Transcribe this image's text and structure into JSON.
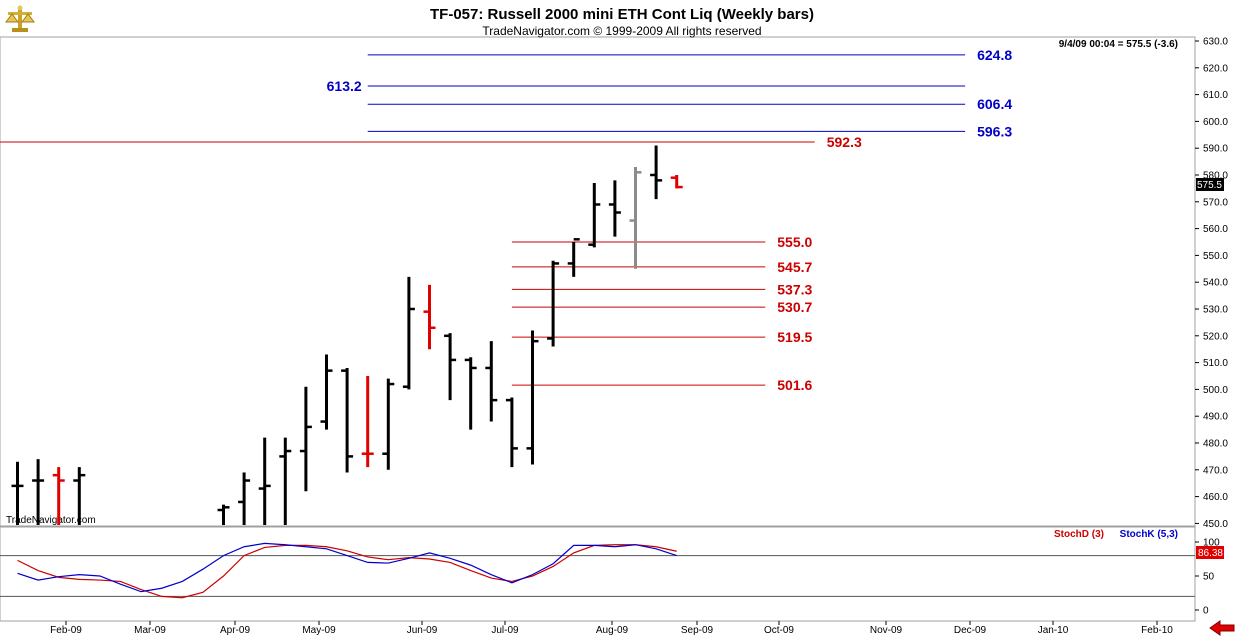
{
  "header": {
    "title": "TF-057:  Russell 2000 mini ETH Cont Liq  (Weekly bars)",
    "subtitle": "TradeNavigator.com © 1999-2009 All rights reserved"
  },
  "quote_line": "9/4/09 00:04 = 575.5 (-3.6)",
  "watermark": "TradeNavigator.com",
  "last_price_tag": "575.5",
  "colors": {
    "up_bar": "#000000",
    "down_bar": "#e00000",
    "neutral_bar": "#8c8c8c",
    "blue_level": "#0000c8",
    "red_level": "#cc0000",
    "stochD": "#cc0000",
    "stochK": "#0000cc",
    "osc_tag": "#e00000"
  },
  "icons": {
    "logo": "gold-scale-logo-icon",
    "nav": "red-left-arrow-icon"
  },
  "chart_data": [
    {
      "type": "ohlc",
      "title": "TF-057:  Russell 2000 mini ETH Cont Liq  (Weekly bars)",
      "ylim": [
        443,
        632
      ],
      "y_ticks": [
        "630.0",
        "620.0",
        "610.0",
        "600.0",
        "590.0",
        "580.0",
        "570.0",
        "560.0",
        "550.0",
        "540.0",
        "530.0",
        "520.0",
        "510.0",
        "500.0",
        "490.0",
        "480.0",
        "470.0",
        "460.0",
        "450.0"
      ],
      "x_labels": [
        "Feb-09",
        "Mar-09",
        "Apr-09",
        "May-09",
        "Jun-09",
        "Jul-09",
        "Aug-09",
        "Sep-09",
        "Oct-09",
        "Nov-09",
        "Dec-09",
        "Jan-10",
        "Feb-10"
      ],
      "bars": [
        {
          "w": 0,
          "o": 464,
          "h": 473,
          "l": 443,
          "c": 464,
          "color": "up"
        },
        {
          "w": 1,
          "o": 466,
          "h": 474,
          "l": 443,
          "c": 466,
          "color": "up"
        },
        {
          "w": 2,
          "o": 468,
          "h": 471,
          "l": 443,
          "c": 466,
          "color": "down"
        },
        {
          "w": 3,
          "o": 466,
          "h": 471,
          "l": 443,
          "c": 468,
          "color": "up"
        },
        {
          "w": 10,
          "o": 455,
          "h": 457,
          "l": 443,
          "c": 456,
          "color": "up"
        },
        {
          "w": 11,
          "o": 458,
          "h": 469,
          "l": 443,
          "c": 466,
          "color": "up"
        },
        {
          "w": 12,
          "o": 463,
          "h": 482,
          "l": 443,
          "c": 464,
          "color": "up"
        },
        {
          "w": 13,
          "o": 475,
          "h": 482,
          "l": 447,
          "c": 477,
          "color": "up"
        },
        {
          "w": 14,
          "o": 477,
          "h": 501,
          "l": 462,
          "c": 486,
          "color": "up"
        },
        {
          "w": 15,
          "o": 488,
          "h": 513,
          "l": 485,
          "c": 507,
          "color": "up"
        },
        {
          "w": 16,
          "o": 507,
          "h": 508,
          "l": 469,
          "c": 475,
          "color": "up"
        },
        {
          "w": 17,
          "o": 476,
          "h": 505,
          "l": 471,
          "c": 476,
          "color": "down"
        },
        {
          "w": 18,
          "o": 476,
          "h": 504,
          "l": 470,
          "c": 502,
          "color": "up"
        },
        {
          "w": 19,
          "o": 501,
          "h": 542,
          "l": 500,
          "c": 530,
          "color": "up"
        },
        {
          "w": 20,
          "o": 529,
          "h": 539,
          "l": 515,
          "c": 523,
          "color": "down"
        },
        {
          "w": 21,
          "o": 520,
          "h": 521,
          "l": 496,
          "c": 511,
          "color": "up"
        },
        {
          "w": 22,
          "o": 511,
          "h": 512,
          "l": 485,
          "c": 508,
          "color": "up"
        },
        {
          "w": 23,
          "o": 508,
          "h": 518,
          "l": 488,
          "c": 496,
          "color": "up"
        },
        {
          "w": 24,
          "o": 496,
          "h": 497,
          "l": 471,
          "c": 478,
          "color": "up"
        },
        {
          "w": 25,
          "o": 478,
          "h": 522,
          "l": 472,
          "c": 518,
          "color": "up"
        },
        {
          "w": 26,
          "o": 519,
          "h": 548,
          "l": 516,
          "c": 547,
          "color": "up"
        },
        {
          "w": 27,
          "o": 547,
          "h": 555,
          "l": 542,
          "c": 556,
          "color": "up"
        },
        {
          "w": 28,
          "o": 554,
          "h": 577,
          "l": 553,
          "c": 569,
          "color": "up"
        },
        {
          "w": 29,
          "o": 569,
          "h": 578,
          "l": 557,
          "c": 566,
          "color": "up"
        },
        {
          "w": 30,
          "o": 563,
          "h": 583,
          "l": 545,
          "c": 581,
          "color": "neutral"
        },
        {
          "w": 31,
          "o": 580,
          "h": 591,
          "l": 571,
          "c": 578,
          "color": "up"
        },
        {
          "w": 32,
          "o": 579,
          "h": 580,
          "l": 575,
          "c": 575.5,
          "color": "down"
        }
      ],
      "levels": [
        {
          "value": 624.8,
          "label": "624.8",
          "color": "blue",
          "label_side": "right",
          "x_start_w": 17,
          "x_end_w": 46
        },
        {
          "value": 613.2,
          "label": "613.2",
          "color": "blue",
          "label_side": "left",
          "x_start_w": 17,
          "x_end_w": 46
        },
        {
          "value": 606.4,
          "label": "606.4",
          "color": "blue",
          "label_side": "right",
          "x_start_w": 17,
          "x_end_w": 46
        },
        {
          "value": 596.3,
          "label": "596.3",
          "color": "blue",
          "label_side": "right",
          "x_start_w": 17,
          "x_end_w": 46
        },
        {
          "value": 592.3,
          "label": "592.3",
          "color": "red",
          "label_side": "right",
          "x_start_w": -1,
          "x_end_w": 38.7
        },
        {
          "value": 555.0,
          "label": "555.0",
          "color": "red",
          "label_side": "right",
          "x_start_w": 24,
          "x_end_w": 36.3
        },
        {
          "value": 545.7,
          "label": "545.7",
          "color": "red",
          "label_side": "right",
          "x_start_w": 24,
          "x_end_w": 36.3
        },
        {
          "value": 537.3,
          "label": "537.3",
          "color": "red",
          "label_side": "right",
          "x_start_w": 24,
          "x_end_w": 36.3
        },
        {
          "value": 530.7,
          "label": "530.7",
          "color": "red",
          "label_side": "right",
          "x_start_w": 24,
          "x_end_w": 36.3
        },
        {
          "value": 519.5,
          "label": "519.5",
          "color": "red",
          "label_side": "right",
          "x_start_w": 24,
          "x_end_w": 36.3
        },
        {
          "value": 501.6,
          "label": "501.6",
          "color": "red",
          "label_side": "right",
          "x_start_w": 24,
          "x_end_w": 36.3
        }
      ]
    },
    {
      "type": "line",
      "title": "Stochastic",
      "ylim": [
        -10,
        120
      ],
      "y_ticks": [
        "100",
        "50",
        "0"
      ],
      "reference_lines": [
        80,
        20
      ],
      "current_value_tag": "86.38",
      "series": [
        {
          "name": "StochD (3)",
          "color": "red",
          "points": [
            [
              0,
              73
            ],
            [
              1,
              58
            ],
            [
              2,
              48
            ],
            [
              3,
              45
            ],
            [
              4,
              44
            ],
            [
              5,
              42
            ],
            [
              6,
              30
            ],
            [
              7,
              20
            ],
            [
              8,
              18
            ],
            [
              9,
              26
            ],
            [
              10,
              50
            ],
            [
              11,
              80
            ],
            [
              12,
              92
            ],
            [
              13,
              95
            ],
            [
              14,
              95
            ],
            [
              15,
              93
            ],
            [
              16,
              87
            ],
            [
              17,
              78
            ],
            [
              18,
              74
            ],
            [
              19,
              77
            ],
            [
              20,
              75
            ],
            [
              21,
              70
            ],
            [
              22,
              58
            ],
            [
              23,
              47
            ],
            [
              24,
              42
            ],
            [
              25,
              50
            ],
            [
              26,
              64
            ],
            [
              27,
              84
            ],
            [
              28,
              95
            ],
            [
              29,
              96
            ],
            [
              30,
              96
            ],
            [
              31,
              93
            ],
            [
              32,
              86.38
            ]
          ]
        },
        {
          "name": "StochK (5,3)",
          "color": "blue",
          "points": [
            [
              0,
              54
            ],
            [
              1,
              44
            ],
            [
              2,
              49
            ],
            [
              3,
              52
            ],
            [
              4,
              50
            ],
            [
              5,
              38
            ],
            [
              6,
              27
            ],
            [
              7,
              32
            ],
            [
              8,
              42
            ],
            [
              9,
              60
            ],
            [
              10,
              80
            ],
            [
              11,
              93
            ],
            [
              12,
              98
            ],
            [
              13,
              96
            ],
            [
              14,
              93
            ],
            [
              15,
              90
            ],
            [
              16,
              80
            ],
            [
              17,
              70
            ],
            [
              18,
              69
            ],
            [
              19,
              76
            ],
            [
              20,
              84
            ],
            [
              21,
              76
            ],
            [
              22,
              66
            ],
            [
              23,
              52
            ],
            [
              24,
              40
            ],
            [
              25,
              52
            ],
            [
              26,
              68
            ],
            [
              27,
              95
            ],
            [
              28,
              95
            ],
            [
              29,
              93
            ],
            [
              30,
              96
            ],
            [
              31,
              90
            ],
            [
              32,
              80
            ]
          ]
        }
      ]
    }
  ]
}
